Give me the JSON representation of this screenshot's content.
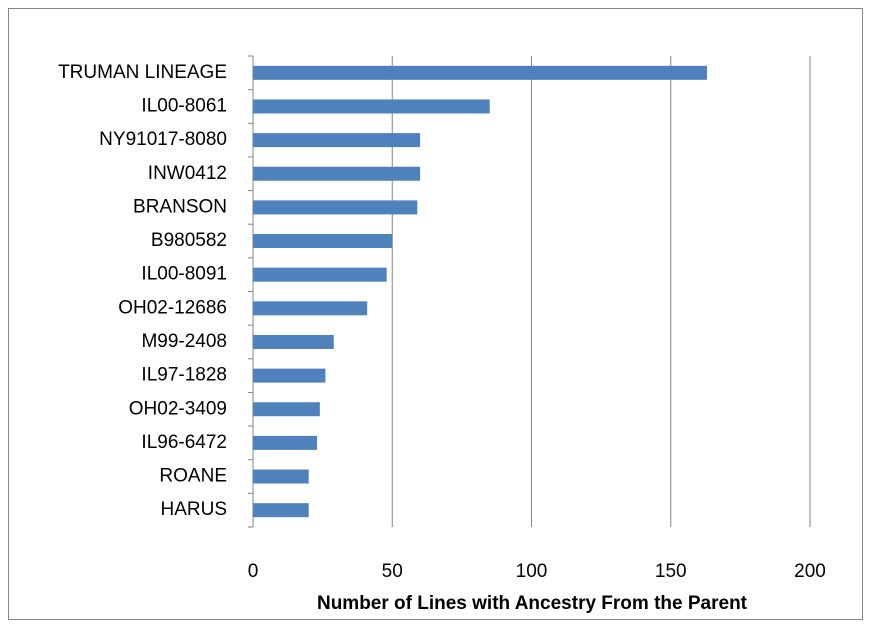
{
  "chart_data": {
    "type": "bar",
    "orientation": "horizontal",
    "x_label": "Number of Lines with Ancestry From the Parent",
    "categories": [
      "TRUMAN LINEAGE",
      "IL00-8061",
      "NY91017-8080",
      "INW0412",
      "BRANSON",
      "B980582",
      "IL00-8091",
      "OH02-12686",
      "M99-2408",
      "IL97-1828",
      "OH02-3409",
      "IL96-6472",
      "ROANE",
      "HARUS"
    ],
    "values": [
      163,
      85,
      60,
      60,
      59,
      50,
      48,
      41,
      29,
      26,
      24,
      23,
      20,
      20
    ],
    "color": "#4f81bd",
    "xlim": [
      0,
      200
    ],
    "xticks": [
      0,
      50,
      100,
      150,
      200
    ],
    "grid": true
  }
}
